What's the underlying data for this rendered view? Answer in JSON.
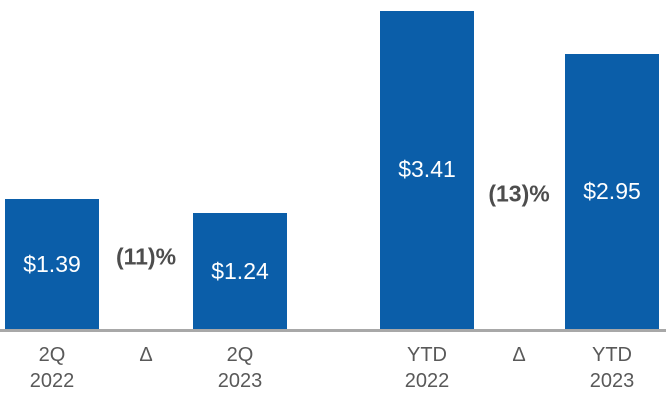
{
  "chart_data": {
    "type": "bar",
    "title": "",
    "xlabel": "",
    "ylabel": "",
    "categories": [
      "2Q 2022",
      "2Q 2023",
      "YTD 2022",
      "YTD 2023"
    ],
    "values": [
      1.39,
      1.24,
      3.41,
      2.95
    ],
    "data_labels": [
      "$1.39",
      "$1.24",
      "$3.41",
      "$2.95"
    ],
    "deltas": [
      {
        "symbol": "Δ",
        "label": "(11)%",
        "between": [
          "2Q 2022",
          "2Q 2023"
        ]
      },
      {
        "symbol": "Δ",
        "label": "(13)%",
        "between": [
          "YTD 2022",
          "YTD 2023"
        ]
      }
    ],
    "x_tick_labels": [
      [
        "2Q",
        "2022"
      ],
      [
        "Δ"
      ],
      [
        "2Q",
        "2023"
      ],
      [
        "YTD",
        "2022"
      ],
      [
        "Δ"
      ],
      [
        "YTD",
        "2023"
      ]
    ],
    "ylim": [
      0,
      3.55
    ],
    "grid": false,
    "legend": false,
    "colors": {
      "bar": "#0b5ea9",
      "value_label": "#ffffff",
      "delta_label": "#4d4d4d",
      "axis_label": "#595959",
      "axis_line": "#a8a8a8",
      "background": "#ffffff"
    }
  }
}
